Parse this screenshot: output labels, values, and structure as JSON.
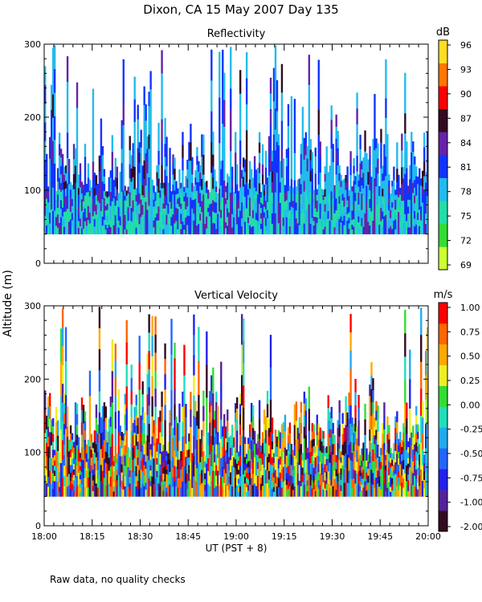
{
  "title": "Dixon, CA 15 May 2007  Day 135",
  "footer_note": "Raw data, no quality checks",
  "shared_ylabel": "Altitude (m)",
  "chart_data": [
    {
      "type": "heatmap",
      "title": "Reflectivity",
      "x_ticks": [
        "18:00",
        "18:15",
        "18:30",
        "18:45",
        "19:00",
        "19:15",
        "19:30",
        "19:45",
        "20:00"
      ],
      "xlabel": "",
      "ylabel": "Altitude (m)",
      "ylim": [
        0,
        300
      ],
      "y_ticks": [
        0,
        100,
        200,
        300
      ],
      "colorbar": {
        "unit": "dB",
        "labels": [
          "69",
          "72",
          "75",
          "78",
          "81",
          "84",
          "87",
          "90",
          "93",
          "96"
        ],
        "colors": [
          "#ccff33",
          "#33dd33",
          "#22ddaa",
          "#22bbee",
          "#1133ff",
          "#6622aa",
          "#330a22",
          "#ff0000",
          "#ff7700",
          "#ffdd22"
        ]
      }
    },
    {
      "type": "heatmap",
      "title": "Vertical Velocity",
      "x_ticks": [
        "18:00",
        "18:15",
        "18:30",
        "18:45",
        "19:00",
        "19:15",
        "19:30",
        "19:45",
        "20:00"
      ],
      "xlabel": "UT  (PST + 8)",
      "ylabel": "Altitude (m)",
      "ylim": [
        0,
        300
      ],
      "y_ticks": [
        0,
        100,
        200,
        300
      ],
      "colorbar": {
        "unit": "m/s",
        "labels": [
          "-2.00",
          "-1.00",
          "-0.75",
          "-0.50",
          "-0.25",
          "0.00",
          "0.25",
          "0.50",
          "0.75",
          "1.00"
        ],
        "colors": [
          "#330a22",
          "#552299",
          "#2222ee",
          "#2266ff",
          "#22aaee",
          "#22ddbb",
          "#33dd33",
          "#eeee22",
          "#ffaa00",
          "#ff6600",
          "#ff0000"
        ]
      }
    }
  ]
}
